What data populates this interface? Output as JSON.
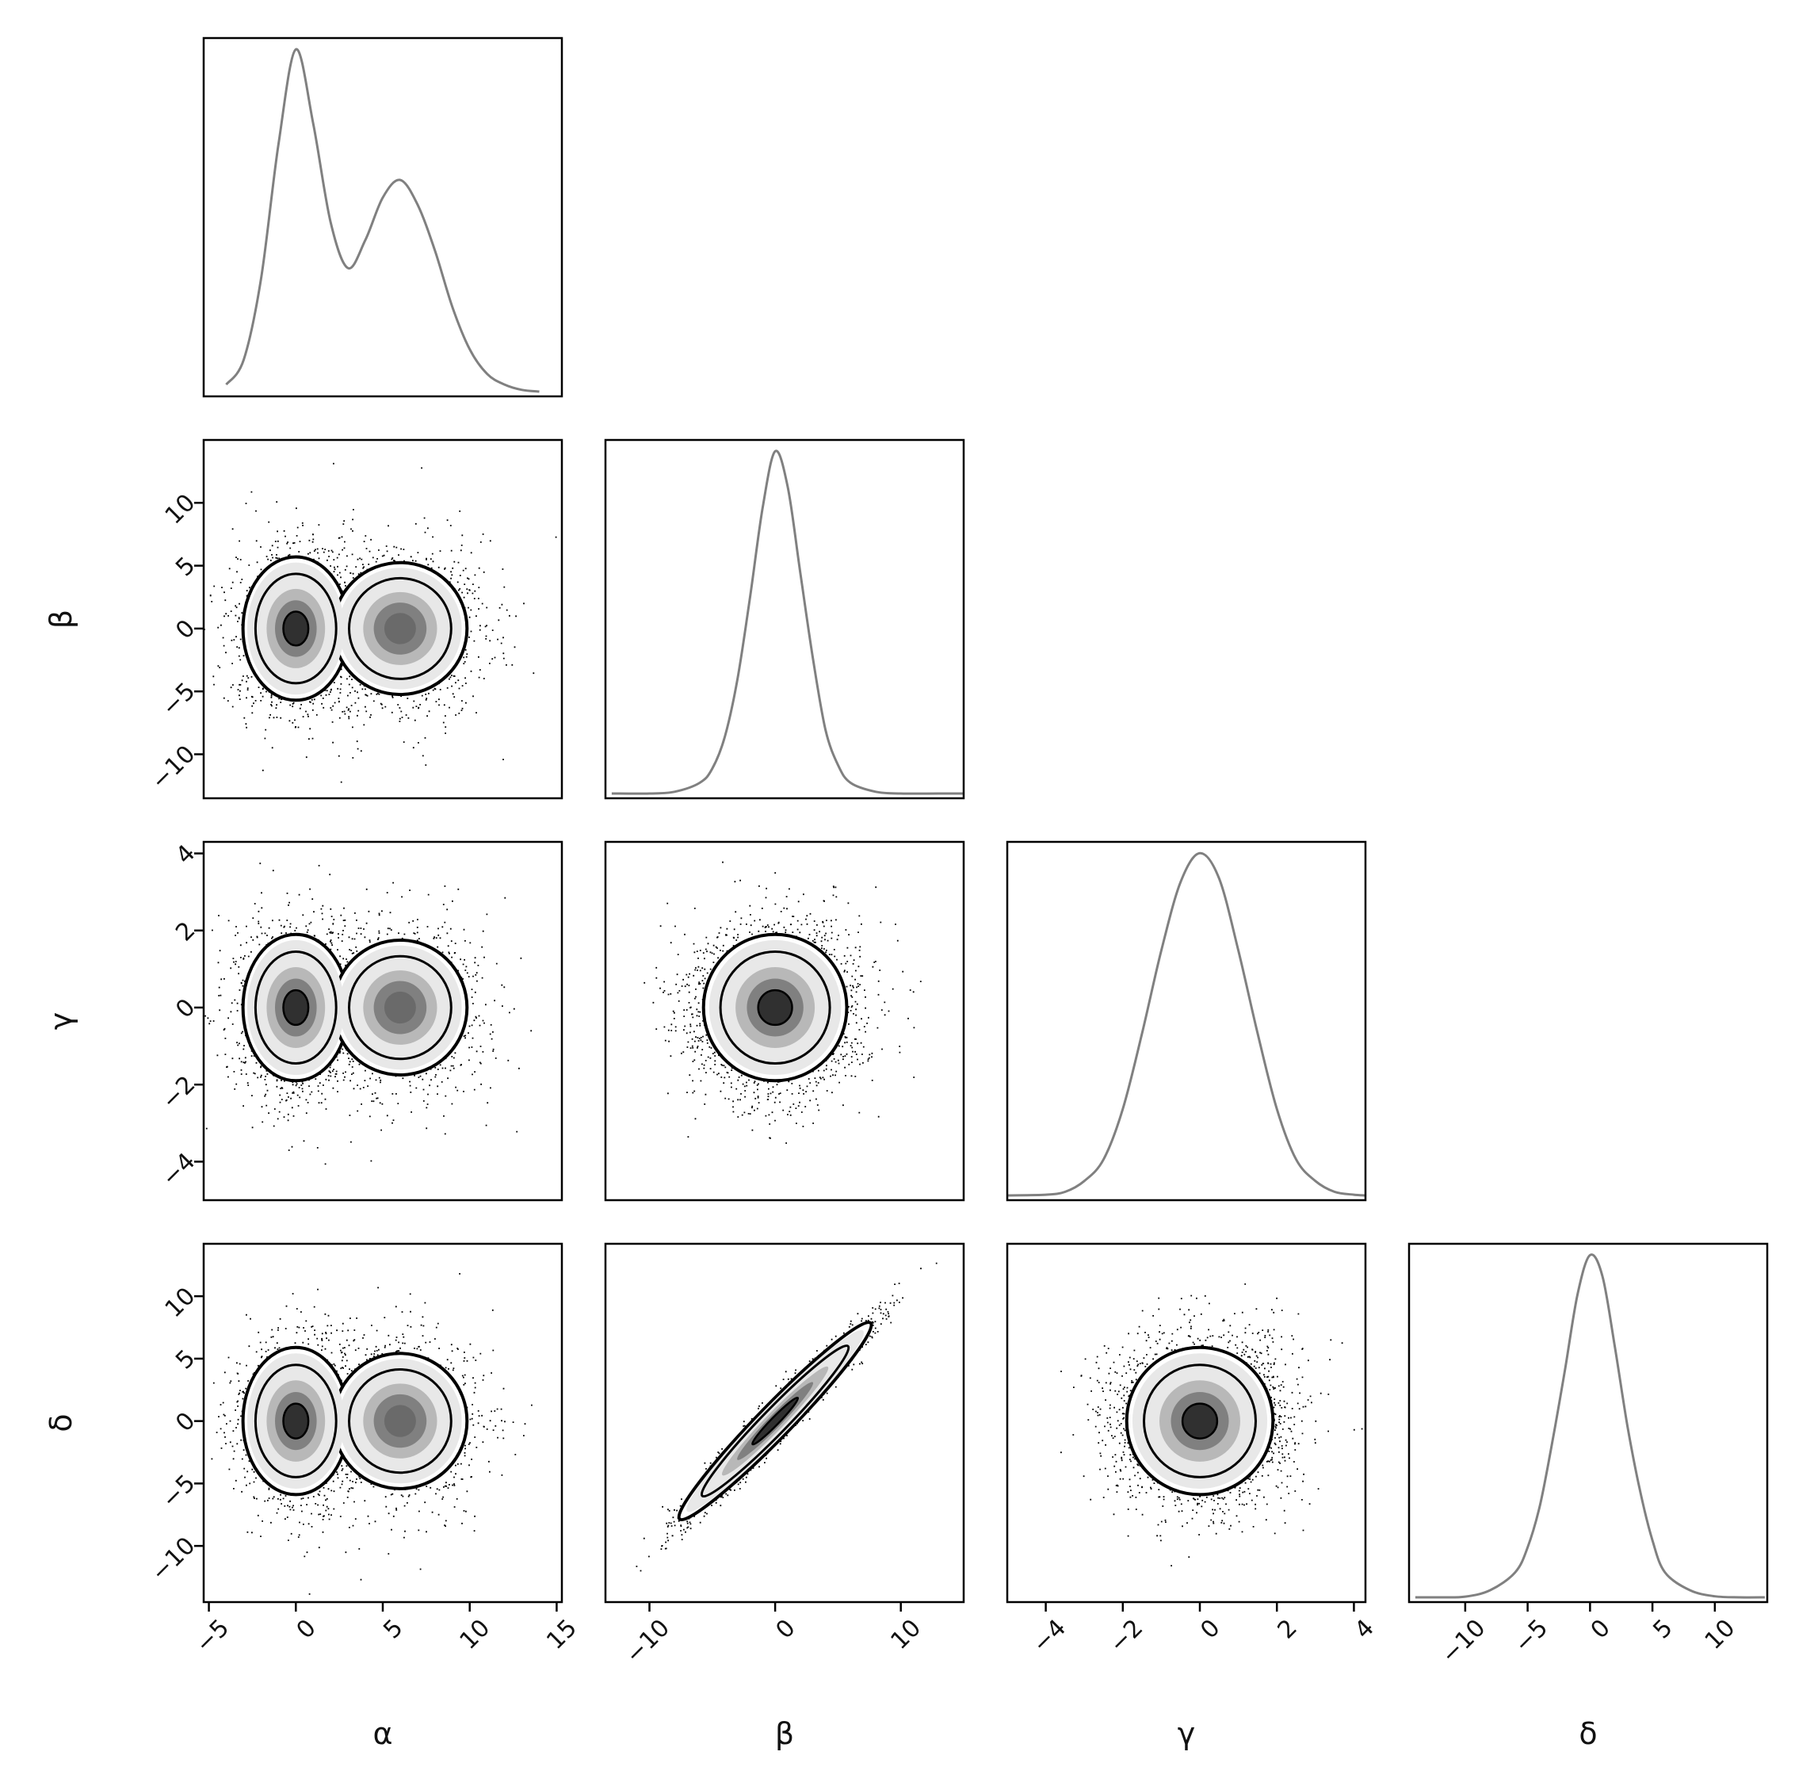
{
  "chart_data": {
    "type": "corner",
    "parameters": [
      "α",
      "β",
      "γ",
      "δ"
    ],
    "ranges": {
      "α": [
        -5.3,
        15.3
      ],
      "β": [
        -13.5,
        15.0
      ],
      "γ": [
        -5.0,
        4.3
      ],
      "δ": [
        -14.5,
        14.2
      ]
    },
    "ticks": {
      "α": [
        -5,
        0,
        5,
        10,
        15
      ],
      "β": [
        -10,
        0,
        10
      ],
      "γ": [
        -4,
        -2,
        0,
        2,
        4
      ],
      "δ": [
        -10,
        -5,
        0,
        5,
        10
      ]
    },
    "row_ticks": {
      "β": [
        -10,
        -5,
        0,
        5,
        10
      ],
      "γ": [
        -4,
        -2,
        0,
        2,
        4
      ],
      "δ": [
        -10,
        -5,
        0,
        5,
        10
      ]
    },
    "diagonal": [
      {
        "param": "α",
        "type": "line",
        "x": [
          -4,
          -3,
          -2,
          -1,
          0,
          1,
          2,
          3,
          4,
          5,
          6,
          7,
          8,
          9,
          10,
          11,
          12,
          13,
          14
        ],
        "y": [
          0.02,
          0.09,
          0.32,
          0.7,
          0.97,
          0.76,
          0.48,
          0.35,
          0.43,
          0.55,
          0.6,
          0.53,
          0.4,
          0.24,
          0.12,
          0.05,
          0.02,
          0.005,
          0.0
        ]
      },
      {
        "param": "β",
        "type": "line",
        "x": [
          -13,
          -10,
          -8,
          -6,
          -5,
          -4,
          -3,
          -2,
          -1,
          0,
          1,
          2,
          3,
          4,
          5,
          6,
          8,
          10,
          13,
          15
        ],
        "y": [
          0.0,
          0.0,
          0.005,
          0.03,
          0.07,
          0.16,
          0.32,
          0.55,
          0.8,
          0.96,
          0.86,
          0.62,
          0.38,
          0.18,
          0.08,
          0.03,
          0.005,
          0.0,
          0.0,
          0.0
        ]
      },
      {
        "param": "γ",
        "type": "line",
        "x": [
          -5,
          -4,
          -3.5,
          -3,
          -2.5,
          -2,
          -1.5,
          -1,
          -0.5,
          0,
          0.5,
          1,
          1.5,
          2,
          2.5,
          3,
          3.5,
          4,
          4.3
        ],
        "y": [
          0.0,
          0.002,
          0.01,
          0.04,
          0.1,
          0.24,
          0.45,
          0.68,
          0.87,
          0.95,
          0.88,
          0.68,
          0.45,
          0.24,
          0.1,
          0.04,
          0.01,
          0.002,
          0.0
        ]
      },
      {
        "param": "δ",
        "type": "line",
        "x": [
          -14,
          -12,
          -10,
          -8,
          -6,
          -5,
          -4,
          -3,
          -2,
          -1,
          0,
          1,
          2,
          3,
          4,
          5,
          6,
          8,
          10,
          12,
          14
        ],
        "y": [
          0.0,
          0.0,
          0.002,
          0.02,
          0.07,
          0.14,
          0.26,
          0.44,
          0.64,
          0.85,
          0.96,
          0.9,
          0.7,
          0.48,
          0.3,
          0.16,
          0.07,
          0.02,
          0.003,
          0.0,
          0.0
        ]
      }
    ],
    "pairs": [
      {
        "x": "α",
        "y": "β",
        "type": "scatter+contour",
        "modes": [
          {
            "x": 0,
            "y": 0,
            "sx": 1.6,
            "sy": 3.0,
            "w": 0.55
          },
          {
            "x": 6,
            "y": 0,
            "sx": 2.2,
            "sy": 3.0,
            "w": 0.45
          }
        ],
        "rho": 0.0
      },
      {
        "x": "α",
        "y": "γ",
        "type": "scatter+contour",
        "modes": [
          {
            "x": 0,
            "y": 0,
            "sx": 1.6,
            "sy": 1.0,
            "w": 0.55
          },
          {
            "x": 6,
            "y": 0,
            "sx": 2.2,
            "sy": 1.0,
            "w": 0.45
          }
        ],
        "rho": 0.0
      },
      {
        "x": "β",
        "y": "γ",
        "type": "scatter+contour",
        "modes": [
          {
            "x": 0,
            "y": 0,
            "sx": 3.0,
            "sy": 1.0,
            "w": 1.0
          }
        ],
        "rho": 0.0
      },
      {
        "x": "α",
        "y": "δ",
        "type": "scatter+contour",
        "modes": [
          {
            "x": 0,
            "y": 0,
            "sx": 1.6,
            "sy": 3.1,
            "w": 0.55
          },
          {
            "x": 6,
            "y": 0,
            "sx": 2.2,
            "sy": 3.1,
            "w": 0.45
          }
        ],
        "rho": 0.0
      },
      {
        "x": "β",
        "y": "δ",
        "type": "scatter+contour",
        "modes": [
          {
            "x": 0,
            "y": 0,
            "sx": 3.0,
            "sy": 3.1,
            "w": 1.0
          }
        ],
        "rho": 0.97
      },
      {
        "x": "γ",
        "y": "δ",
        "type": "scatter+contour",
        "modes": [
          {
            "x": 0,
            "y": 0,
            "sx": 1.0,
            "sy": 3.1,
            "w": 1.0
          }
        ],
        "rho": 0.0
      }
    ],
    "colors": {
      "diagonal_line": "#808080",
      "points": "#000000",
      "contour": "#000000",
      "frame": "#000000"
    }
  }
}
